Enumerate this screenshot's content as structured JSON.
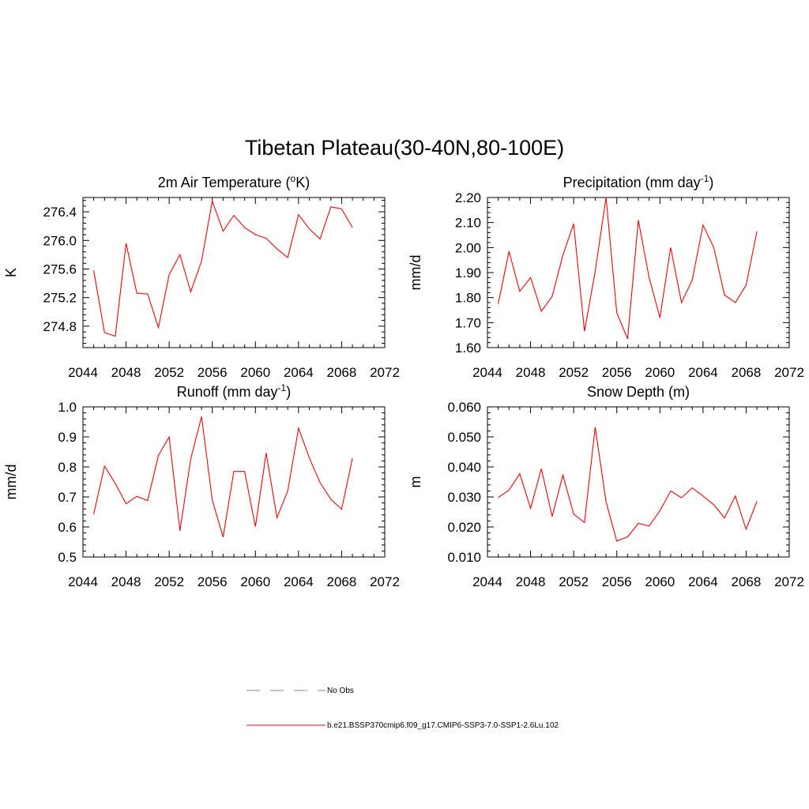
{
  "figure_title": "Tibetan Plateau(30-40N,80-100E)",
  "legend": [
    {
      "label": "No Obs",
      "style": "dashed",
      "color": "#9999dd"
    },
    {
      "label": "b.e21.BSSP370cmip6.f09_g17.CMIP6-SSP3-7.0-SSP1-2.6Lu.102",
      "style": "solid",
      "color": "#ff0000"
    }
  ],
  "chart_data": [
    {
      "type": "line",
      "title": "2m Air Temperature (",
      "title_sup": "o",
      "title_tail": "K)",
      "ylabel": "K",
      "xlim": [
        2044,
        2072
      ],
      "ylim": [
        274.5,
        276.6
      ],
      "xticks": [
        2044,
        2048,
        2052,
        2056,
        2060,
        2064,
        2068,
        2072
      ],
      "xtick_labels": [
        "2044",
        "2048",
        "2052",
        "2056",
        "2060",
        "2064",
        "2068",
        "2072"
      ],
      "yticks": [
        274.8,
        275.2,
        275.6,
        276.0,
        276.4
      ],
      "ytick_labels": [
        "274.8",
        "275.2",
        "275.6",
        "276.0",
        "276.4"
      ],
      "series": [
        {
          "color": "#ff0000",
          "x": [
            2045,
            2046,
            2047,
            2048,
            2049,
            2050,
            2051,
            2052,
            2053,
            2054,
            2055,
            2056,
            2057,
            2058,
            2059,
            2060,
            2061,
            2062,
            2063,
            2064,
            2065,
            2066,
            2067,
            2068,
            2069
          ],
          "y": [
            275.58,
            274.71,
            274.66,
            275.96,
            275.26,
            275.25,
            274.78,
            275.52,
            275.8,
            275.28,
            275.71,
            276.55,
            276.13,
            276.35,
            276.18,
            276.08,
            276.03,
            275.88,
            275.76,
            276.36,
            276.16,
            276.02,
            276.47,
            276.44,
            276.18
          ]
        }
      ]
    },
    {
      "type": "line",
      "title": "Precipitation (mm day",
      "title_sup": "-1",
      "title_tail": ")",
      "ylabel": "mm/d",
      "xlim": [
        2044,
        2072
      ],
      "ylim": [
        1.6,
        2.2
      ],
      "xticks": [
        2044,
        2048,
        2052,
        2056,
        2060,
        2064,
        2068,
        2072
      ],
      "xtick_labels": [
        "2044",
        "2048",
        "2052",
        "2056",
        "2060",
        "2064",
        "2068",
        "2072"
      ],
      "yticks": [
        1.6,
        1.7,
        1.8,
        1.9,
        2.0,
        2.1,
        2.2
      ],
      "ytick_labels": [
        "1.60",
        "1.70",
        "1.80",
        "1.90",
        "2.00",
        "2.10",
        "2.20"
      ],
      "series": [
        {
          "color": "#ff0000",
          "x": [
            2045,
            2046,
            2047,
            2048,
            2049,
            2050,
            2051,
            2052,
            2053,
            2054,
            2055,
            2056,
            2057,
            2058,
            2059,
            2060,
            2061,
            2062,
            2063,
            2064,
            2065,
            2066,
            2067,
            2068,
            2069
          ],
          "y": [
            1.775,
            1.985,
            1.825,
            1.88,
            1.745,
            1.805,
            1.97,
            2.095,
            1.665,
            1.905,
            2.2,
            1.74,
            1.635,
            2.11,
            1.88,
            1.72,
            2.0,
            1.78,
            1.87,
            2.09,
            2.0,
            1.81,
            1.78,
            1.85,
            2.065
          ]
        }
      ]
    },
    {
      "type": "line",
      "title": "Runoff (mm day",
      "title_sup": "-1",
      "title_tail": ")",
      "ylabel": "mm/d",
      "xlim": [
        2044,
        2072
      ],
      "ylim": [
        0.5,
        1.0
      ],
      "xticks": [
        2044,
        2048,
        2052,
        2056,
        2060,
        2064,
        2068,
        2072
      ],
      "xtick_labels": [
        "2044",
        "2048",
        "2052",
        "2056",
        "2060",
        "2064",
        "2068",
        "2072"
      ],
      "yticks": [
        0.5,
        0.6,
        0.7,
        0.8,
        0.9,
        1.0
      ],
      "ytick_labels": [
        "0.5",
        "0.6",
        "0.7",
        "0.8",
        "0.9",
        "1.0"
      ],
      "series": [
        {
          "color": "#ff0000",
          "x": [
            2045,
            2046,
            2047,
            2048,
            2049,
            2050,
            2051,
            2052,
            2053,
            2054,
            2055,
            2056,
            2057,
            2058,
            2059,
            2060,
            2061,
            2062,
            2063,
            2064,
            2065,
            2066,
            2067,
            2068,
            2069
          ],
          "y": [
            0.643,
            0.803,
            0.745,
            0.677,
            0.702,
            0.688,
            0.838,
            0.9,
            0.587,
            0.826,
            0.968,
            0.69,
            0.566,
            0.785,
            0.785,
            0.601,
            0.846,
            0.631,
            0.72,
            0.929,
            0.83,
            0.748,
            0.692,
            0.659,
            0.829
          ]
        }
      ]
    },
    {
      "type": "line",
      "title": "Snow Depth (m)",
      "title_sup": "",
      "title_tail": "",
      "ylabel": "m",
      "xlim": [
        2044,
        2072
      ],
      "ylim": [
        0.01,
        0.06
      ],
      "xticks": [
        2044,
        2048,
        2052,
        2056,
        2060,
        2064,
        2068,
        2072
      ],
      "xtick_labels": [
        "2044",
        "2048",
        "2052",
        "2056",
        "2060",
        "2064",
        "2068",
        "2072"
      ],
      "yticks": [
        0.01,
        0.02,
        0.03,
        0.04,
        0.05,
        0.06
      ],
      "ytick_labels": [
        "0.010",
        "0.020",
        "0.030",
        "0.040",
        "0.050",
        "0.060"
      ],
      "series": [
        {
          "color": "#ff0000",
          "x": [
            2045,
            2046,
            2047,
            2048,
            2049,
            2050,
            2051,
            2052,
            2053,
            2054,
            2055,
            2056,
            2057,
            2058,
            2059,
            2060,
            2061,
            2062,
            2063,
            2064,
            2065,
            2066,
            2067,
            2068,
            2069
          ],
          "y": [
            0.0298,
            0.0323,
            0.0377,
            0.0262,
            0.0394,
            0.0235,
            0.0373,
            0.0243,
            0.0215,
            0.0532,
            0.0284,
            0.0153,
            0.0167,
            0.0212,
            0.0203,
            0.0254,
            0.032,
            0.0297,
            0.033,
            0.0303,
            0.0274,
            0.023,
            0.0303,
            0.0192,
            0.0286
          ]
        }
      ]
    }
  ]
}
